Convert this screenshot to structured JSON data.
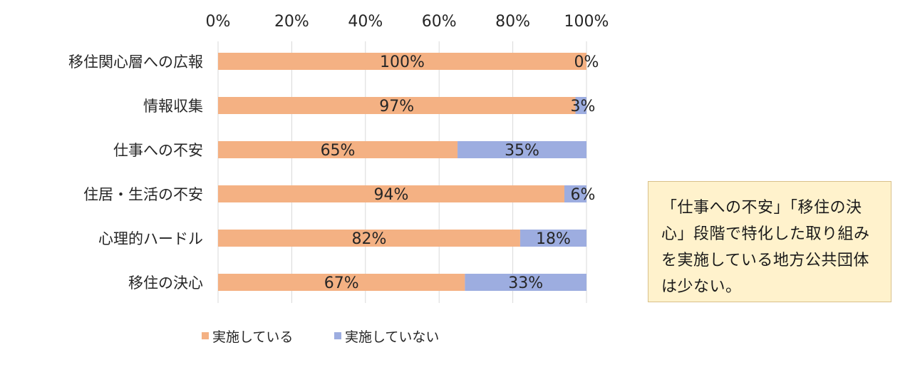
{
  "chart_data": {
    "type": "bar",
    "orientation": "horizontal",
    "stacked": "100%",
    "categories": [
      "移住関心層への広報",
      "情報収集",
      "仕事への不安",
      "住居・生活の不安",
      "心理的ハードル",
      "移住の決心"
    ],
    "series": [
      {
        "name": "実施している",
        "values": [
          100,
          97,
          65,
          94,
          82,
          67
        ],
        "labels": [
          "100%",
          "97%",
          "65%",
          "94%",
          "82%",
          "67%"
        ],
        "color": "#f4b183"
      },
      {
        "name": "実施していない",
        "values": [
          0,
          3,
          35,
          6,
          18,
          33
        ],
        "labels": [
          "0%",
          "3%",
          "35%",
          "6%",
          "18%",
          "33%"
        ],
        "color": "#9dade0"
      }
    ],
    "xlim": [
      0,
      100
    ],
    "xticks": [
      "0%",
      "20%",
      "40%",
      "60%",
      "80%",
      "100%"
    ],
    "axis_position": "top",
    "grid": true,
    "legend_position": "bottom"
  },
  "callout": {
    "text": "「仕事への不安」「移住の決心」段階で特化した取り組みを実施している地方公共団体は少ない。"
  }
}
